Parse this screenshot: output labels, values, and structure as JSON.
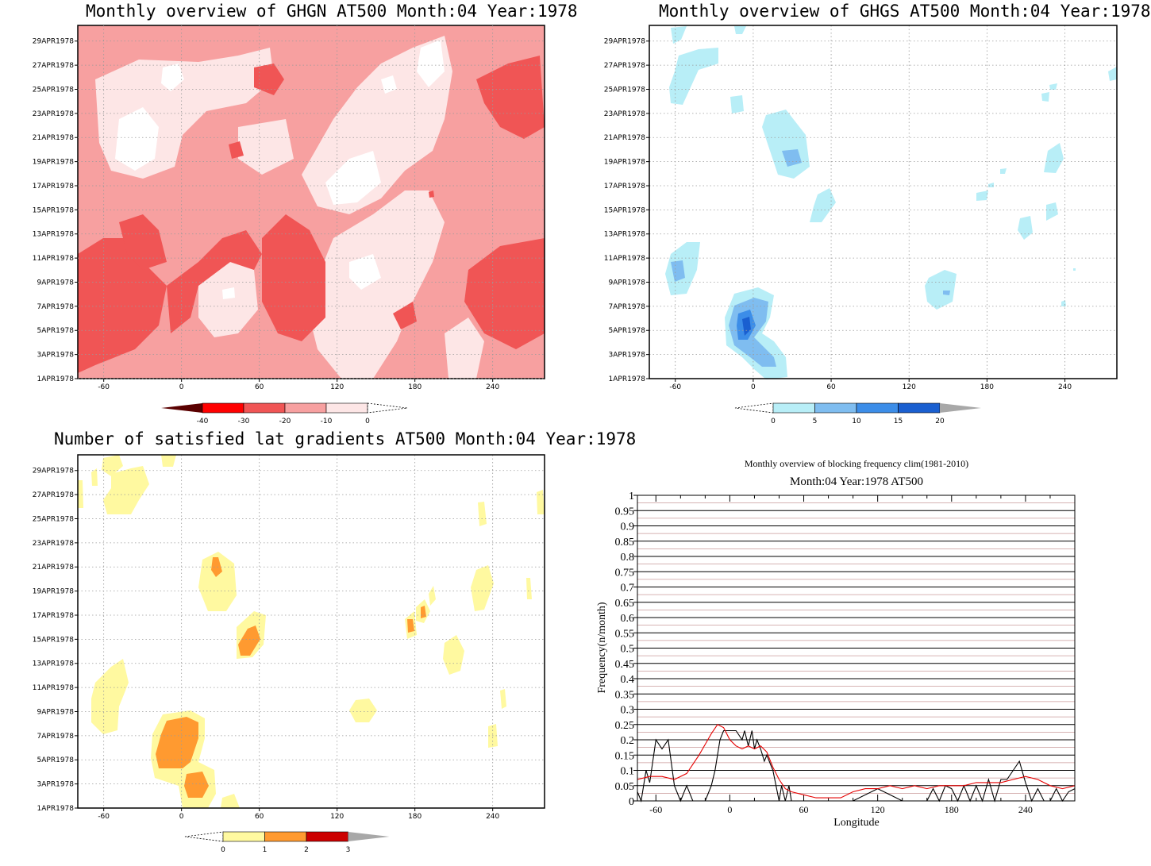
{
  "panels": {
    "ghgn": {
      "title": "Monthly overview of GHGN AT500 Month:04 Year:1978",
      "colorbar": {
        "labels": [
          "-40",
          "-30",
          "-20",
          "-10",
          "0"
        ],
        "colors": [
          "#5a0000",
          "#ff0000",
          "#f05555",
          "#f7a0a0",
          "#fde6e6"
        ]
      }
    },
    "ghgs": {
      "title": "Monthly overview of GHGS AT500 Month:04 Year:1978",
      "colorbar": {
        "labels": [
          "0",
          "5",
          "10",
          "15",
          "20"
        ],
        "colors": [
          "#b8eef7",
          "#7fbdf0",
          "#3c8de8",
          "#1a5fd0"
        ]
      }
    },
    "gradients": {
      "title": "Number of satisfied lat gradients AT500 Month:04 Year:1978",
      "colorbar": {
        "labels": [
          "0",
          "1",
          "2",
          "3"
        ],
        "colors": [
          "#fff9a0",
          "#ff9a30",
          "#cc0000"
        ]
      }
    }
  },
  "map_axes": {
    "xticks": [
      "-60",
      "0",
      "60",
      "120",
      "180",
      "240"
    ],
    "yticks": [
      "1APR1978",
      "3APR1978",
      "5APR1978",
      "7APR1978",
      "9APR1978",
      "11APR1978",
      "13APR1978",
      "15APR1978",
      "17APR1978",
      "19APR1978",
      "21APR1978",
      "23APR1978",
      "25APR1978",
      "27APR1978",
      "29APR1978"
    ]
  },
  "chart_data": [
    {
      "type": "line",
      "title": "Monthly overview of blocking frequency clim(1981-2010)",
      "subtitle": "Month:04 Year:1978  AT500",
      "xlabel": "Longitude",
      "ylabel": "Frequency(n/month)",
      "xlim": [
        -75,
        280
      ],
      "ylim": [
        0,
        1
      ],
      "xticks": [
        -60,
        0,
        60,
        120,
        180,
        240
      ],
      "yticks": [
        "0",
        "0.05",
        "0.1",
        "0.15",
        "0.2",
        "0.25",
        "0.3",
        "0.35",
        "0.4",
        "0.45",
        "0.5",
        "0.55",
        "0.6",
        "0.65",
        "0.7",
        "0.75",
        "0.8",
        "0.85",
        "0.9",
        "0.95",
        "1"
      ],
      "grid": true,
      "series": [
        {
          "color": "#000000",
          "x": [
            -75,
            -72,
            -68,
            -65,
            -60,
            -55,
            -50,
            -48,
            -45,
            -40,
            -35,
            -30,
            -25,
            -20,
            -15,
            -12,
            -10,
            -8,
            -5,
            0,
            5,
            10,
            12,
            15,
            18,
            20,
            22,
            25,
            28,
            30,
            35,
            40,
            42,
            45,
            48,
            50,
            55,
            60,
            70,
            80,
            100,
            120,
            130,
            140,
            150,
            160,
            165,
            170,
            175,
            180,
            185,
            190,
            195,
            200,
            205,
            210,
            215,
            220,
            225,
            230,
            235,
            240,
            245,
            250,
            255,
            260,
            265,
            270,
            275,
            280
          ],
          "y": [
            0.03,
            0.0,
            0.1,
            0.06,
            0.2,
            0.17,
            0.2,
            0.14,
            0.05,
            0.0,
            0.05,
            0.0,
            0.0,
            0.0,
            0.05,
            0.1,
            0.15,
            0.2,
            0.23,
            0.23,
            0.23,
            0.2,
            0.23,
            0.18,
            0.23,
            0.17,
            0.2,
            0.17,
            0.13,
            0.15,
            0.1,
            0.0,
            0.05,
            0.0,
            0.05,
            0.0,
            0.0,
            0.0,
            0.0,
            0.0,
            0.0,
            0.04,
            0.02,
            0.0,
            0.0,
            0.0,
            0.04,
            0.0,
            0.05,
            0.04,
            0.0,
            0.05,
            0.0,
            0.05,
            0.0,
            0.07,
            0.0,
            0.07,
            0.07,
            0.1,
            0.13,
            0.06,
            0.0,
            0.04,
            0.0,
            0.0,
            0.04,
            0.0,
            0.03,
            0.04
          ]
        },
        {
          "color": "#e60000",
          "x": [
            -75,
            -65,
            -55,
            -45,
            -35,
            -25,
            -15,
            -10,
            -5,
            0,
            5,
            10,
            15,
            20,
            25,
            30,
            35,
            40,
            45,
            50,
            60,
            70,
            80,
            90,
            100,
            110,
            120,
            130,
            140,
            150,
            160,
            170,
            180,
            190,
            200,
            210,
            220,
            230,
            240,
            250,
            260,
            270,
            280
          ],
          "y": [
            0.07,
            0.08,
            0.08,
            0.07,
            0.09,
            0.15,
            0.22,
            0.25,
            0.24,
            0.2,
            0.18,
            0.17,
            0.18,
            0.17,
            0.18,
            0.16,
            0.11,
            0.07,
            0.04,
            0.03,
            0.02,
            0.01,
            0.01,
            0.01,
            0.03,
            0.04,
            0.04,
            0.05,
            0.04,
            0.05,
            0.04,
            0.05,
            0.05,
            0.05,
            0.06,
            0.06,
            0.06,
            0.07,
            0.08,
            0.07,
            0.05,
            0.04,
            0.05
          ]
        }
      ]
    }
  ]
}
